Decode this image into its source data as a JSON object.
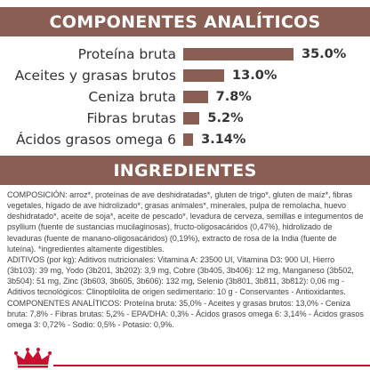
{
  "sections": {
    "analytical_title": "COMPONENTES ANALÍTICOS",
    "ingredients_title": "INGREDIENTES"
  },
  "chart_data": {
    "type": "bar",
    "title": "COMPONENTES ANALÍTICOS",
    "categories": [
      "Proteína bruta",
      "Aceites y grasas brutos",
      "Ceniza bruta",
      "Fibras brutas",
      "Ácidos grasos omega 6"
    ],
    "values": [
      35.0,
      13.0,
      7.8,
      5.2,
      3.14
    ],
    "value_labels": [
      "35.0%",
      "13.0%",
      "7.8%",
      "5.2%",
      "3.14%"
    ],
    "color": "#8b5e54"
  },
  "ingredients": {
    "paragraphs": [
      "COMPOSICIÓN: arroz*, proteínas de ave deshidratadas*, gluten de trigo*, gluten de maíz*, fibras vegetales, hígado de ave hidrolizado*, grasas animales*, minerales, pulpa de remolacha, huevo deshidratado*, aceite de soja*, aceite de pescado*, levadura de cerveza, semillas e integumentos de psyllium (fuente de sustancias mucilaginosas), fructo-oligosacáridos (0,47%), hidrolizado de levaduras (fuente de manano-oligosacáridos) (0,19%), extracto de rosa de la India (fuente de luteína). *ingredientes altamente digestibles.",
      "ADITIVOS (por kg): Aditivos nutricionales: Vitamina A: 23500 UI, Vitamina D3: 900 UI, Hierro (3b103): 39 mg, Yodo (3b201, 3b202): 3,9 mg, Cobre (3b405, 3b406): 12 mg, Manganeso (3b502, 3b504): 51 mg, Zinc (3b603, 3b605, 3b606): 132 mg, Selenio (3b801, 3b811, 3b812): 0,06 mg - Aditivos tecnológicos: Clinoptilolita de origen sedimentario: 10 g - Conservantes - Antioxidantes.",
      "COMPONENTES ANALÍTICOS: Proteína bruta: 35,0% - Aceites y grasas brutos: 13,0% - Ceniza bruta: 7,8% - Fibras brutas: 5,2% - EPA/DHA: 0,3% - Ácidos grasos omega 6: 3,14% - Ácidos grasos omega 3: 0,72% - Sodio: 0,5% - Potasio: 0,9%."
    ]
  },
  "brand": {
    "logo": "royal-canin-crown",
    "accent": "#c8102e"
  }
}
